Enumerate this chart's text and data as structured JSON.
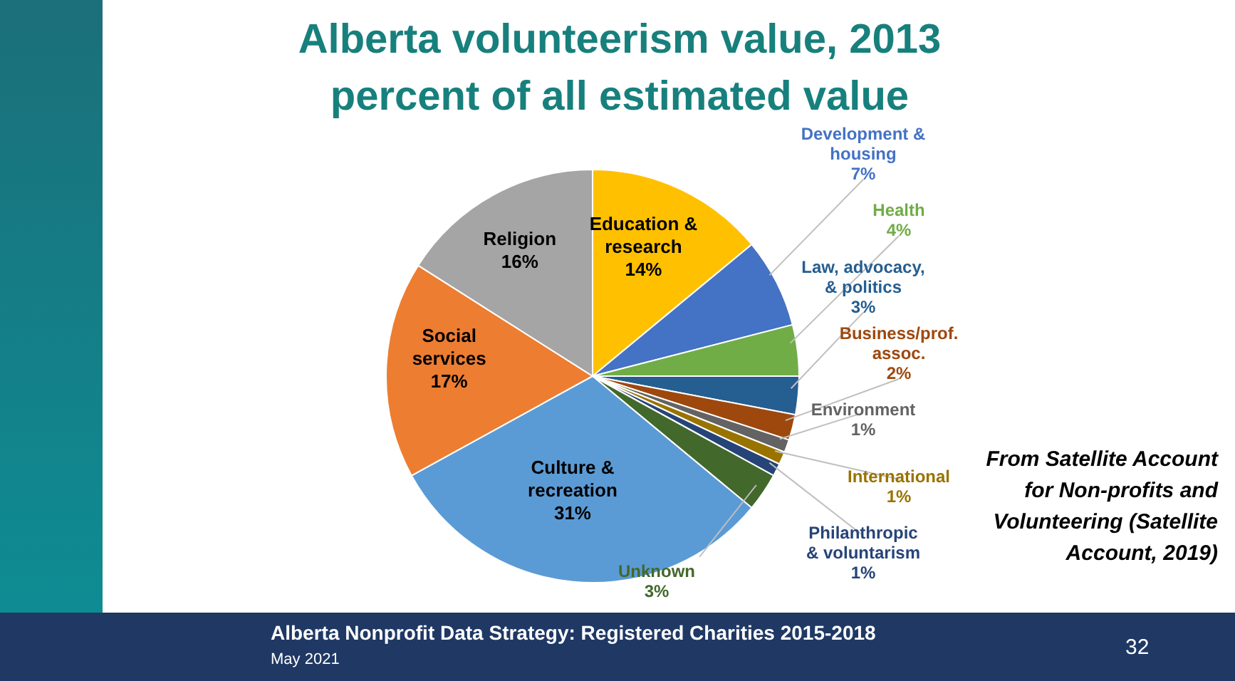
{
  "chart_data": {
    "type": "pie",
    "title": "Alberta volunteerism value, 2013 percent of all estimated value",
    "categories": [
      "Education & research",
      "Development & housing",
      "Health",
      "Law, advocacy, & politics",
      "Business/prof. assoc.",
      "Environment",
      "International",
      "Philanthropic & voluntarism",
      "Unknown",
      "Culture & recreation",
      "Social services",
      "Religion"
    ],
    "values": [
      14,
      7,
      4,
      3,
      2,
      1,
      1,
      1,
      3,
      31,
      17,
      16
    ],
    "value_labels": [
      "14%",
      "7%",
      "4%",
      "3%",
      "2%",
      "1%",
      "1%",
      "1%",
      "3%",
      "31%",
      "17%",
      "16%"
    ],
    "colors": [
      "#ffc000",
      "#4472c4",
      "#70ad47",
      "#255e91",
      "#9e480e",
      "#636363",
      "#997300",
      "#264478",
      "#43682b",
      "#5b9bd5",
      "#ed7d31",
      "#a5a5a5"
    ],
    "legend": false,
    "annotations": [
      "From Satellite Account for Non-profits and Volunteering (Satellite Account, 2019)",
      "Alberta Nonprofit Data Strategy: Registered Charities 2015-2018",
      "May 2021",
      "32"
    ]
  }
}
